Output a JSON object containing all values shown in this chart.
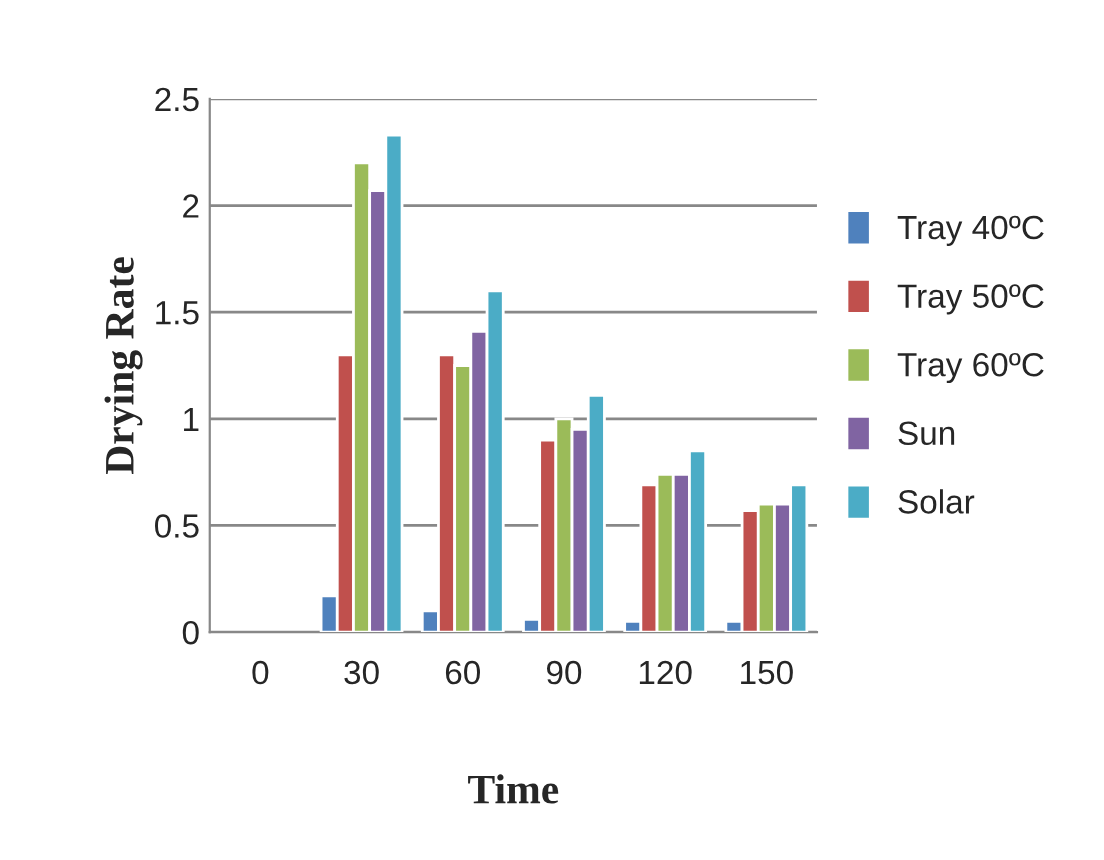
{
  "chart_data": {
    "type": "bar",
    "xlabel": "Time",
    "ylabel": "Drying Rate",
    "categories": [
      "0",
      "30",
      "60",
      "90",
      "120",
      "150"
    ],
    "series": [
      {
        "name": "Tray 40ºC",
        "color": "#4f81bd",
        "values": [
          null,
          0.17,
          0.1,
          0.06,
          0.05,
          0.05
        ]
      },
      {
        "name": "Tray 50ºC",
        "color": "#c0504d",
        "values": [
          null,
          1.3,
          1.3,
          0.9,
          0.69,
          0.57
        ]
      },
      {
        "name": "Tray 60ºC",
        "color": "#9bbb59",
        "values": [
          null,
          2.2,
          1.25,
          1.0,
          0.74,
          0.6
        ]
      },
      {
        "name": "Sun",
        "color": "#8064a2",
        "values": [
          null,
          2.07,
          1.41,
          0.95,
          0.74,
          0.6
        ]
      },
      {
        "name": "Solar",
        "color": "#4bacc6",
        "values": [
          null,
          2.33,
          1.6,
          1.11,
          0.85,
          0.69
        ]
      }
    ],
    "ylim": [
      0,
      2.5
    ],
    "yticks": [
      0,
      0.5,
      1,
      1.5,
      2,
      2.5
    ],
    "grid": "y",
    "legend": "right"
  }
}
